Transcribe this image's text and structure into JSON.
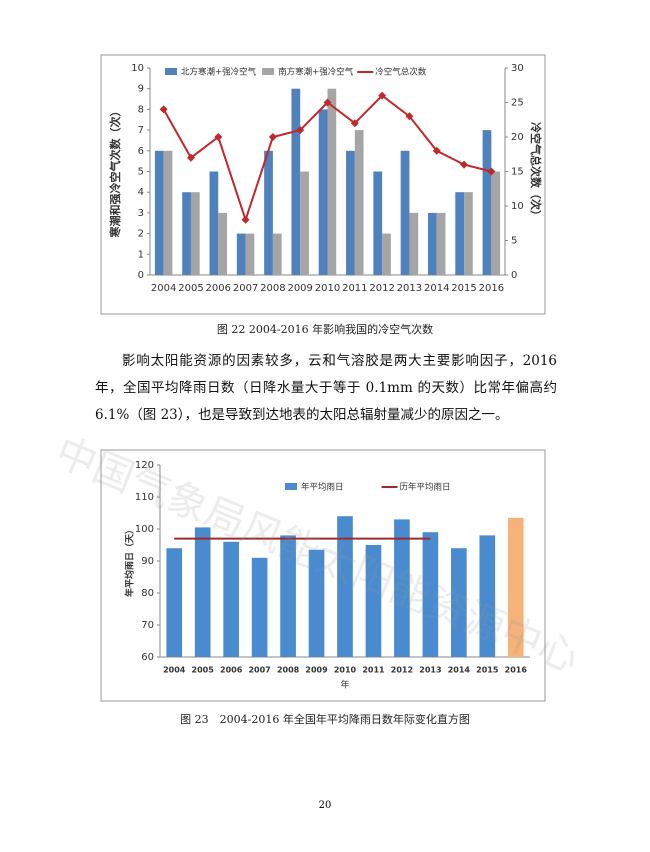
{
  "chart_data": [
    {
      "type": "bar",
      "categories": [
        "2004",
        "2005",
        "2006",
        "2007",
        "2008",
        "2009",
        "2010",
        "2011",
        "2012",
        "2013",
        "2014",
        "2015",
        "2016"
      ],
      "series": [
        {
          "name": "北方寒潮+强冷空气",
          "type": "bar",
          "color": "#4f81bd",
          "values": [
            6,
            4,
            5,
            2,
            6,
            9,
            8,
            6,
            5,
            6,
            3,
            4,
            7
          ]
        },
        {
          "name": "南方寒潮+强冷空气",
          "type": "bar",
          "color": "#a5a5a5",
          "values": [
            6,
            4,
            3,
            2,
            2,
            5,
            9,
            7,
            2,
            3,
            3,
            4,
            5
          ]
        },
        {
          "name": "冷空气总次数",
          "type": "line",
          "axis": "y2",
          "color": "#c0282d",
          "values": [
            24,
            17,
            20,
            8,
            20,
            21,
            25,
            22,
            26,
            23,
            18,
            16,
            15
          ]
        }
      ],
      "ylabel": "寒潮和强冷空气次数（次）",
      "y2label": "冷空气总次数（次）",
      "ylim": [
        0,
        10
      ],
      "yticks": [
        0,
        1,
        2,
        3,
        4,
        5,
        6,
        7,
        8,
        9,
        10
      ],
      "y2lim": [
        0,
        30
      ],
      "y2ticks": [
        0,
        5,
        10,
        15,
        20,
        25,
        30
      ]
    },
    {
      "type": "bar",
      "categories": [
        "2004",
        "2005",
        "2006",
        "2007",
        "2008",
        "2009",
        "2010",
        "2011",
        "2012",
        "2013",
        "2014",
        "2015",
        "2016"
      ],
      "series": [
        {
          "name": "年平均雨日",
          "type": "bar",
          "color": "#4a8bd0",
          "colors": [
            "#4a8bd0",
            "#4a8bd0",
            "#4a8bd0",
            "#4a8bd0",
            "#4a8bd0",
            "#4a8bd0",
            "#4a8bd0",
            "#4a8bd0",
            "#4a8bd0",
            "#4a8bd0",
            "#4a8bd0",
            "#4a8bd0",
            "#f5b37a"
          ],
          "values": [
            94,
            100.5,
            96,
            91,
            98,
            93.5,
            104,
            95,
            103,
            99,
            94,
            98,
            103.5
          ]
        },
        {
          "name": "历年平均雨日",
          "type": "line",
          "color": "#9e2a2b",
          "values": [
            97,
            97,
            97,
            97,
            97,
            97,
            97,
            97,
            97,
            97,
            null,
            null,
            null
          ]
        }
      ],
      "ylabel": "年平均雨日（天）",
      "xlabel": "年",
      "ylim": [
        60,
        120
      ],
      "yticks": [
        60,
        70,
        80,
        90,
        100,
        110,
        120
      ]
    }
  ],
  "captions": [
    "图 22 2004-2016 年影响我国的冷空气次数",
    "图 23　2004-2016 年全国年平均降雨日数年际变化直方图"
  ],
  "paragraph": "影响太阳能资源的因素较多，云和气溶胶是两大主要影响因子，2016 年，全国平均降雨日数（日降水量大于等于 0.1mm 的天数）比常年偏高约 6.1%（图 23），也是导致到达地表的太阳总辐射量减少的原因之一。",
  "watermark": "中国气象局风能太阳能资源中心",
  "page_number": "20"
}
